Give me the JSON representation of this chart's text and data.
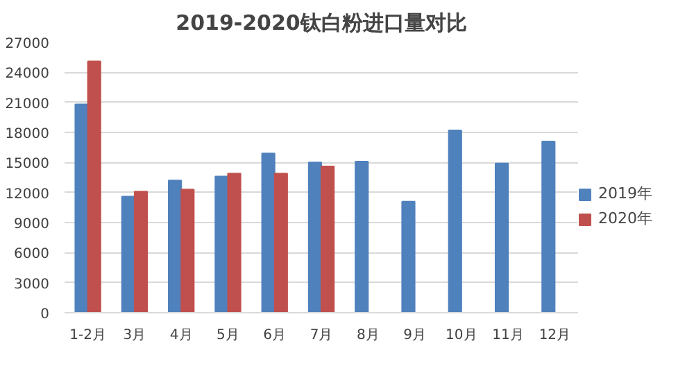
{
  "chart_data": {
    "type": "bar",
    "title": "2019-2020钛白粉进口量对比",
    "categories": [
      "1-2月",
      "3月",
      "4月",
      "5月",
      "6月",
      "7月",
      "8月",
      "9月",
      "10月",
      "11月",
      "12月"
    ],
    "series": [
      {
        "name": "2019年",
        "color": "#4f81bd",
        "values": [
          20800,
          11600,
          13200,
          13600,
          15900,
          15000,
          15100,
          11100,
          18200,
          14900,
          17100
        ]
      },
      {
        "name": "2020年",
        "color": "#c0504d",
        "values": [
          25100,
          12100,
          12300,
          13900,
          13900,
          14600,
          null,
          null,
          null,
          null,
          null
        ]
      }
    ],
    "ylim": [
      0,
      27000
    ],
    "yticks": [
      0,
      3000,
      6000,
      9000,
      12000,
      15000,
      18000,
      21000,
      24000,
      27000
    ],
    "grid": "y",
    "legend": "right"
  }
}
